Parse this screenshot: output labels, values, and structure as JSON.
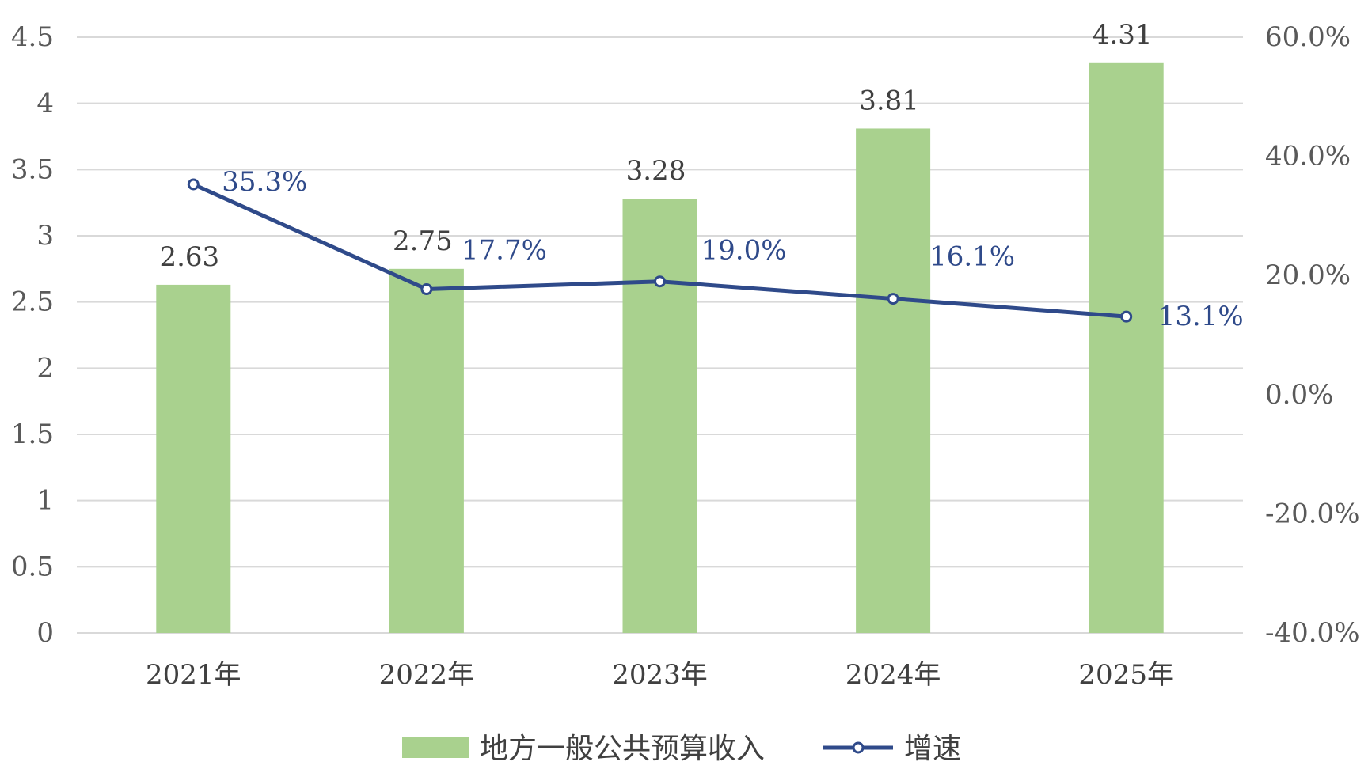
{
  "chart_data": {
    "type": "bar",
    "categories": [
      "2021年",
      "2022年",
      "2023年",
      "2024年",
      "2025年"
    ],
    "series": [
      {
        "name": "地方一般公共预算收入",
        "type": "bar",
        "axis": "left",
        "values": [
          2.63,
          2.75,
          3.28,
          3.81,
          4.31
        ],
        "labels": [
          "2.63",
          "2.75",
          "3.28",
          "3.81",
          "4.31"
        ],
        "color": "#a9d18e"
      },
      {
        "name": "增速",
        "type": "line",
        "axis": "right",
        "values": [
          35.3,
          17.7,
          19.0,
          16.1,
          13.1
        ],
        "labels": [
          "35.3%",
          "17.7%",
          "19.0%",
          "16.1%",
          "13.1%"
        ],
        "color": "#2f4a8a"
      }
    ],
    "y_left": {
      "range": [
        0,
        4.5
      ],
      "ticks": [
        0,
        0.5,
        1,
        1.5,
        2,
        2.5,
        3,
        3.5,
        4,
        4.5
      ],
      "tick_labels": [
        "0",
        "0.5",
        "1",
        "1.5",
        "2",
        "2.5",
        "3",
        "3.5",
        "4",
        "4.5"
      ]
    },
    "y_right": {
      "range": [
        -40,
        60
      ],
      "ticks": [
        -40,
        -20,
        0,
        20,
        40,
        60
      ],
      "tick_labels": [
        "-40.0%",
        "-20.0%",
        "0.0%",
        "20.0%",
        "40.0%",
        "60.0%"
      ]
    },
    "grid": true,
    "legend_position": "bottom",
    "colors": {
      "gridline": "#d9d9d9",
      "bar": "#a9d18e",
      "line": "#2f4a8a"
    }
  }
}
